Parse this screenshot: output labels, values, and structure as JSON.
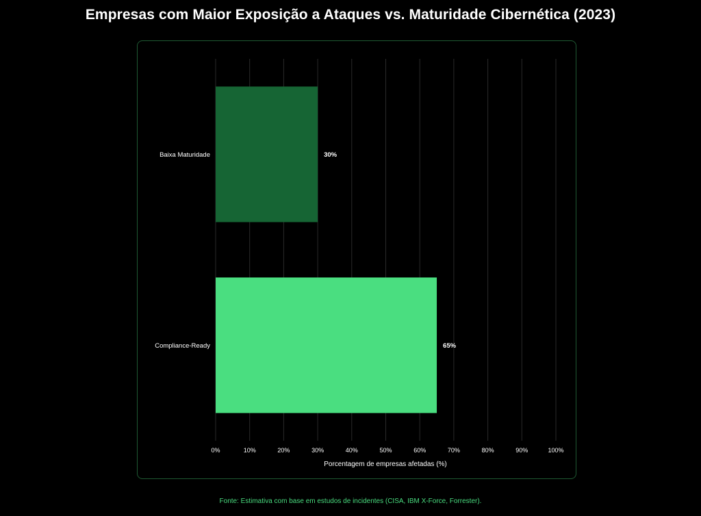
{
  "chart_data": {
    "type": "bar",
    "orientation": "horizontal",
    "title": "Empresas com Maior Exposição a Ataques vs. Maturidade Cibernética (2023)",
    "xlabel": "Porcentagem de empresas afetadas (%)",
    "ylabel": "",
    "categories": [
      "Baixa Maturidade",
      "Compliance-Ready"
    ],
    "values": [
      30,
      65
    ],
    "value_labels": [
      "30%",
      "65%"
    ],
    "bar_colors": [
      "#166534",
      "#4ade80"
    ],
    "xlim": [
      0,
      100
    ],
    "xticks": [
      0,
      10,
      20,
      30,
      40,
      50,
      60,
      70,
      80,
      90,
      100
    ],
    "xtick_labels": [
      "0%",
      "10%",
      "20%",
      "30%",
      "40%",
      "50%",
      "60%",
      "70%",
      "80%",
      "90%",
      "100%"
    ],
    "grid": true,
    "legend": "none"
  },
  "source_note": "Fonte: Estimativa com base em estudos de incidentes (CISA, IBM X-Force, Forrester).",
  "colors": {
    "background": "#000000",
    "panel_border": "#1f5a33",
    "grid": "#2a2a2a",
    "text": "#ffffff",
    "accent": "#4ade80"
  }
}
